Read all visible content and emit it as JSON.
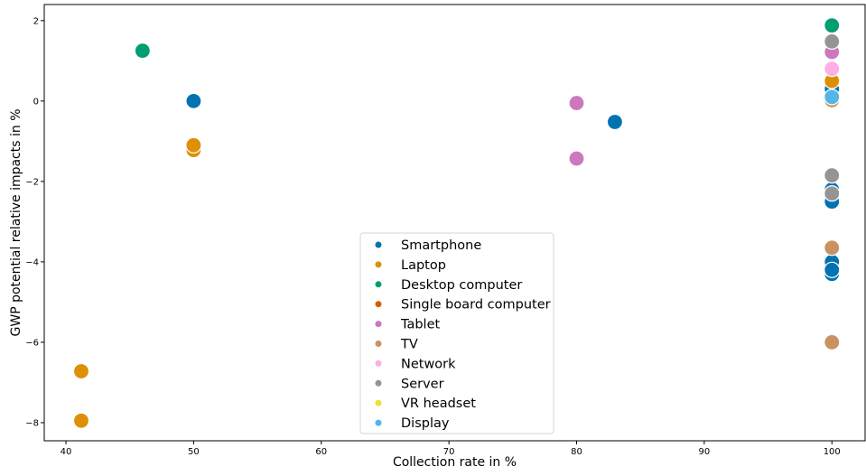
{
  "chart_data": {
    "type": "scatter",
    "title": "",
    "xlabel": "Collection rate in %",
    "ylabel": "GWP potential relative impacts in %",
    "xlim": [
      38.3,
      102.6
    ],
    "ylim": [
      -8.45,
      2.4
    ],
    "xticks": [
      40,
      50,
      60,
      70,
      80,
      90,
      100
    ],
    "yticks": [
      2,
      0,
      -2,
      -4,
      -6,
      -8
    ],
    "ytick_labels": [
      "2",
      "0",
      "−2",
      "−4",
      "−6",
      "−8"
    ],
    "grid": false,
    "legend_position": "lower-center",
    "series": [
      {
        "name": "Smartphone",
        "color": "#0173b2",
        "points": [
          [
            50,
            0.0
          ],
          [
            83,
            -0.52
          ],
          [
            100,
            0.3
          ],
          [
            100,
            -2.2
          ],
          [
            100,
            -2.5
          ],
          [
            100,
            -4.0
          ],
          [
            100,
            -4.3
          ],
          [
            100,
            -4.2
          ]
        ]
      },
      {
        "name": "Laptop",
        "color": "#de8f05",
        "points": [
          [
            41.2,
            -6.72
          ],
          [
            41.2,
            -7.95
          ],
          [
            50,
            -1.22
          ],
          [
            50,
            -1.1
          ],
          [
            100,
            0.5
          ]
        ]
      },
      {
        "name": "Desktop computer",
        "color": "#029e73",
        "points": [
          [
            46,
            1.25
          ],
          [
            100,
            1.88
          ]
        ]
      },
      {
        "name": "Single board computer",
        "color": "#d55e00",
        "points": []
      },
      {
        "name": "Tablet",
        "color": "#cc78bc",
        "points": [
          [
            80,
            -0.05
          ],
          [
            80,
            -1.43
          ],
          [
            100,
            1.22
          ]
        ]
      },
      {
        "name": "TV",
        "color": "#ca9161",
        "points": [
          [
            100,
            0.02
          ],
          [
            100,
            -3.65
          ],
          [
            100,
            -6.0
          ]
        ]
      },
      {
        "name": "Network",
        "color": "#fbafe4",
        "points": [
          [
            100,
            0.8
          ]
        ]
      },
      {
        "name": "Server",
        "color": "#949494",
        "points": [
          [
            100,
            1.48
          ],
          [
            100,
            -1.85
          ],
          [
            100,
            -2.3
          ]
        ]
      },
      {
        "name": "VR headset",
        "color": "#ece133",
        "points": []
      },
      {
        "name": "Display",
        "color": "#56b4e9",
        "points": [
          [
            100,
            0.1
          ]
        ]
      }
    ]
  }
}
